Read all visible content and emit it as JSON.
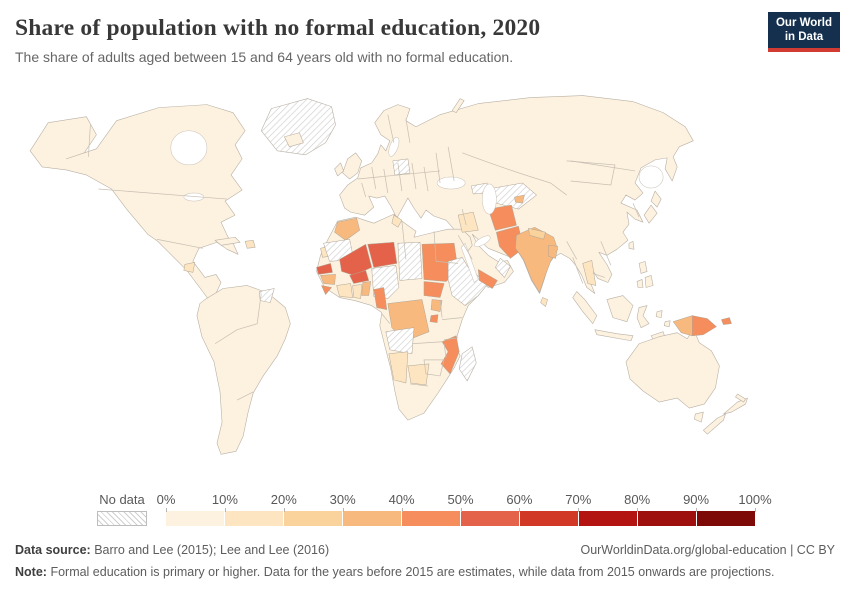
{
  "header": {
    "title": "Share of population with no formal education, 2020",
    "subtitle": "The share of adults aged between 15 and 64 years old with no formal education.",
    "logo": {
      "line1": "Our World",
      "line2": "in Data",
      "bg_color": "#15304f",
      "accent_color": "#d13b32"
    }
  },
  "legend": {
    "no_data_label": "No data",
    "tick_labels": [
      "0%",
      "10%",
      "20%",
      "30%",
      "40%",
      "50%",
      "60%",
      "70%",
      "80%",
      "90%",
      "100%"
    ],
    "colors": [
      "#fdf1df",
      "#fce5c0",
      "#fad29c",
      "#f8b97e",
      "#f58d5c",
      "#e4624a",
      "#d23826",
      "#b31311",
      "#9d100e",
      "#7d0a07"
    ]
  },
  "footer": {
    "source_label": "Data source:",
    "source_text": "Barro and Lee (2015); Lee and Lee (2016)",
    "credit": "OurWorldinData.org/global-education | CC BY",
    "note_label": "Note:",
    "note_text": "Formal education is primary or higher. Data for the years before 2015 are estimates, while data from 2015 onwards are projections."
  },
  "chart_data": {
    "type": "heatmap",
    "subtype": "world-choropleth",
    "title": "Share of population with no formal education, 2020",
    "unit": "%",
    "year": 2020,
    "legend_position": "bottom",
    "bins": [
      "0-10%",
      "10-20%",
      "20-30%",
      "30-40%",
      "40-50%",
      "50-60%",
      "60-70%",
      "70-80%",
      "80-90%",
      "90-100%"
    ],
    "no_data_label": "No data",
    "default_bin": "0-10%",
    "regions": {
      "greenland": "No data",
      "guatemala": "10-20%",
      "hispaniola": "10-20%",
      "suriname-guiana": "No data",
      "morocco": "30-40%",
      "western-sahara": "10-20%",
      "tunisia": "10-20%",
      "mauritania": "No data",
      "senegal": "50-60%",
      "guinea": "30-40%",
      "sierra-leone": "40-50%",
      "ivory-coast": "10-20%",
      "ghana": "10-20%",
      "togo-benin": "30-40%",
      "mali": "50-60%",
      "burkina-faso": "50-60%",
      "niger": "50-60%",
      "nigeria": "No data",
      "chad": "No data",
      "sudan": "40-50%",
      "south-sudan": "40-50%",
      "horn-of-africa": "No data",
      "yemen": "40-50%",
      "oman": "No data",
      "cameroon": "40-50%",
      "dr-congo": "30-40%",
      "uganda": "30-40%",
      "burundi": "40-50%",
      "angola": "No data",
      "mozambique": "40-50%",
      "botswana": "10-20%",
      "namibia": "10-20%",
      "madagascar": "No data",
      "iraq": "10-20%",
      "belarus": "No data",
      "caucasus": "No data",
      "central-asia": "No data",
      "tajikistan": "30-40%",
      "afghanistan": "40-50%",
      "pakistan": "40-50%",
      "india": "30-40%",
      "nepal": "20-30%",
      "bangladesh": "30-40%",
      "sri-lanka": "10-20%",
      "thailand": "10-20%",
      "papua-west": "30-40%",
      "papua-new-guinea": "40-50%"
    }
  }
}
